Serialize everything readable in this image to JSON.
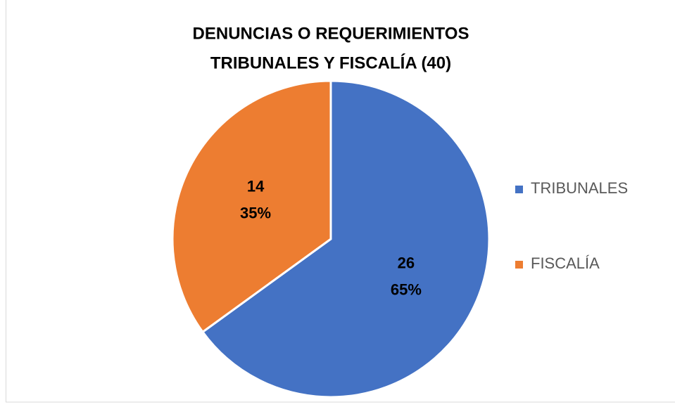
{
  "chart_data": {
    "type": "pie",
    "title": [
      "DENUNCIAS O REQUERIMIENTOS",
      "TRIBUNALES Y FISCALÍA (40)"
    ],
    "categories": [
      "TRIBUNALES",
      "FISCALÍA"
    ],
    "values": [
      26,
      14
    ],
    "percent_labels": [
      "65%",
      "35%"
    ],
    "colors": [
      "#4472c4",
      "#ed7d31"
    ],
    "legend": "right"
  }
}
